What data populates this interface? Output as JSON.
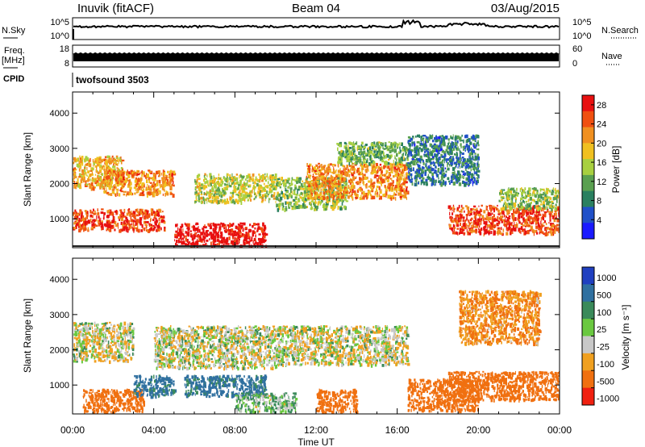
{
  "header": {
    "station": "Inuvik (fitACF)",
    "beam": "Beam 04",
    "date": "03/Aug/2015"
  },
  "summary": {
    "nsky_label": "N.Sky",
    "nsearch_label": "N.Search",
    "freq_label": "Freq.",
    "freq_unit": "[MHz]",
    "nave_label": "Nave",
    "cpid_label": "CPID",
    "cpid_value": "twofsound 3503",
    "nsky_ticks": [
      "10^5",
      "10^0"
    ],
    "nsearch_ticks": [
      "10^5",
      "10^0"
    ],
    "freq_ticks": [
      "18",
      "8"
    ],
    "nave_ticks": [
      "60",
      "0"
    ]
  },
  "axes": {
    "ylabel": "Slant Range [km]",
    "xlabel": "Time UT",
    "y_ticks": [
      "1000",
      "2000",
      "3000",
      "4000"
    ],
    "x_ticks": [
      "00:00",
      "04:00",
      "08:00",
      "12:00",
      "16:00",
      "20:00",
      "00:00"
    ]
  },
  "chart_data": [
    {
      "type": "heatmap",
      "panel": "power",
      "ylabel": "Slant Range [km]",
      "xlabel": "",
      "xlim": [
        0,
        24
      ],
      "ylim": [
        180,
        4600
      ],
      "colorbar_label": "Power [dB]",
      "colorbar_ticks": [
        "4",
        "8",
        "12",
        "16",
        "20",
        "24",
        "28"
      ],
      "colorbar_colors": [
        "#1a1aff",
        "#2050c8",
        "#2a8060",
        "#5aa050",
        "#a8d040",
        "#f0c020",
        "#f09020",
        "#f05010",
        "#e81010"
      ],
      "colorbar_range": [
        0,
        30
      ],
      "echo_regions": [
        {
          "t": [
            0.0,
            2.5
          ],
          "r": [
            1900,
            2800
          ],
          "level": 20
        },
        {
          "t": [
            0.0,
            4.5
          ],
          "r": [
            700,
            1300
          ],
          "level": 26
        },
        {
          "t": [
            1.5,
            5.0
          ],
          "r": [
            1700,
            2400
          ],
          "level": 22
        },
        {
          "t": [
            5.0,
            9.5
          ],
          "r": [
            250,
            900
          ],
          "level": 30
        },
        {
          "t": [
            6.0,
            10.0
          ],
          "r": [
            1500,
            2300
          ],
          "level": 16
        },
        {
          "t": [
            10.0,
            13.5
          ],
          "r": [
            1300,
            2200
          ],
          "level": 14
        },
        {
          "t": [
            11.5,
            16.5
          ],
          "r": [
            1600,
            2600
          ],
          "level": 22
        },
        {
          "t": [
            13.0,
            16.5
          ],
          "r": [
            2600,
            3200
          ],
          "level": 12
        },
        {
          "t": [
            16.5,
            20.0
          ],
          "r": [
            2000,
            3400
          ],
          "level": 8
        },
        {
          "t": [
            18.5,
            24.0
          ],
          "r": [
            600,
            1400
          ],
          "level": 26
        },
        {
          "t": [
            21.0,
            24.0
          ],
          "r": [
            1300,
            1900
          ],
          "level": 14
        }
      ]
    },
    {
      "type": "heatmap",
      "panel": "velocity",
      "ylabel": "Slant Range [km]",
      "xlabel": "Time UT",
      "xlim": [
        0,
        24
      ],
      "ylim": [
        180,
        4600
      ],
      "colorbar_label": "Velocity [m s⁻¹]",
      "colorbar_ticks": [
        "1000",
        "500",
        "100",
        "25",
        "-25",
        "-100",
        "-500",
        "-1000"
      ],
      "colorbar_colors": [
        "#2040c0",
        "#3070a0",
        "#3a8a5a",
        "#6ac840",
        "#c8c8c8",
        "#f0a020",
        "#f07010",
        "#f02010"
      ],
      "echo_regions": [
        {
          "t": [
            0.0,
            3.0
          ],
          "r": [
            1700,
            2800
          ],
          "value": 0
        },
        {
          "t": [
            0.5,
            3.5
          ],
          "r": [
            250,
            900
          ],
          "value": -300
        },
        {
          "t": [
            3.0,
            5.0
          ],
          "r": [
            700,
            1300
          ],
          "value": 300
        },
        {
          "t": [
            4.0,
            10.0
          ],
          "r": [
            1500,
            2700
          ],
          "value": 0
        },
        {
          "t": [
            5.5,
            9.5
          ],
          "r": [
            700,
            1300
          ],
          "value": 300
        },
        {
          "t": [
            8.0,
            11.0
          ],
          "r": [
            250,
            800
          ],
          "value": 50
        },
        {
          "t": [
            10.0,
            16.5
          ],
          "r": [
            1600,
            2700
          ],
          "value": 0
        },
        {
          "t": [
            12.0,
            14.0
          ],
          "r": [
            250,
            900
          ],
          "value": -300
        },
        {
          "t": [
            16.5,
            20.0
          ],
          "r": [
            300,
            1200
          ],
          "value": -300
        },
        {
          "t": [
            18.5,
            24.0
          ],
          "r": [
            600,
            1400
          ],
          "value": -400
        },
        {
          "t": [
            19.0,
            23.0
          ],
          "r": [
            2200,
            3700
          ],
          "value": -100
        }
      ]
    }
  ]
}
